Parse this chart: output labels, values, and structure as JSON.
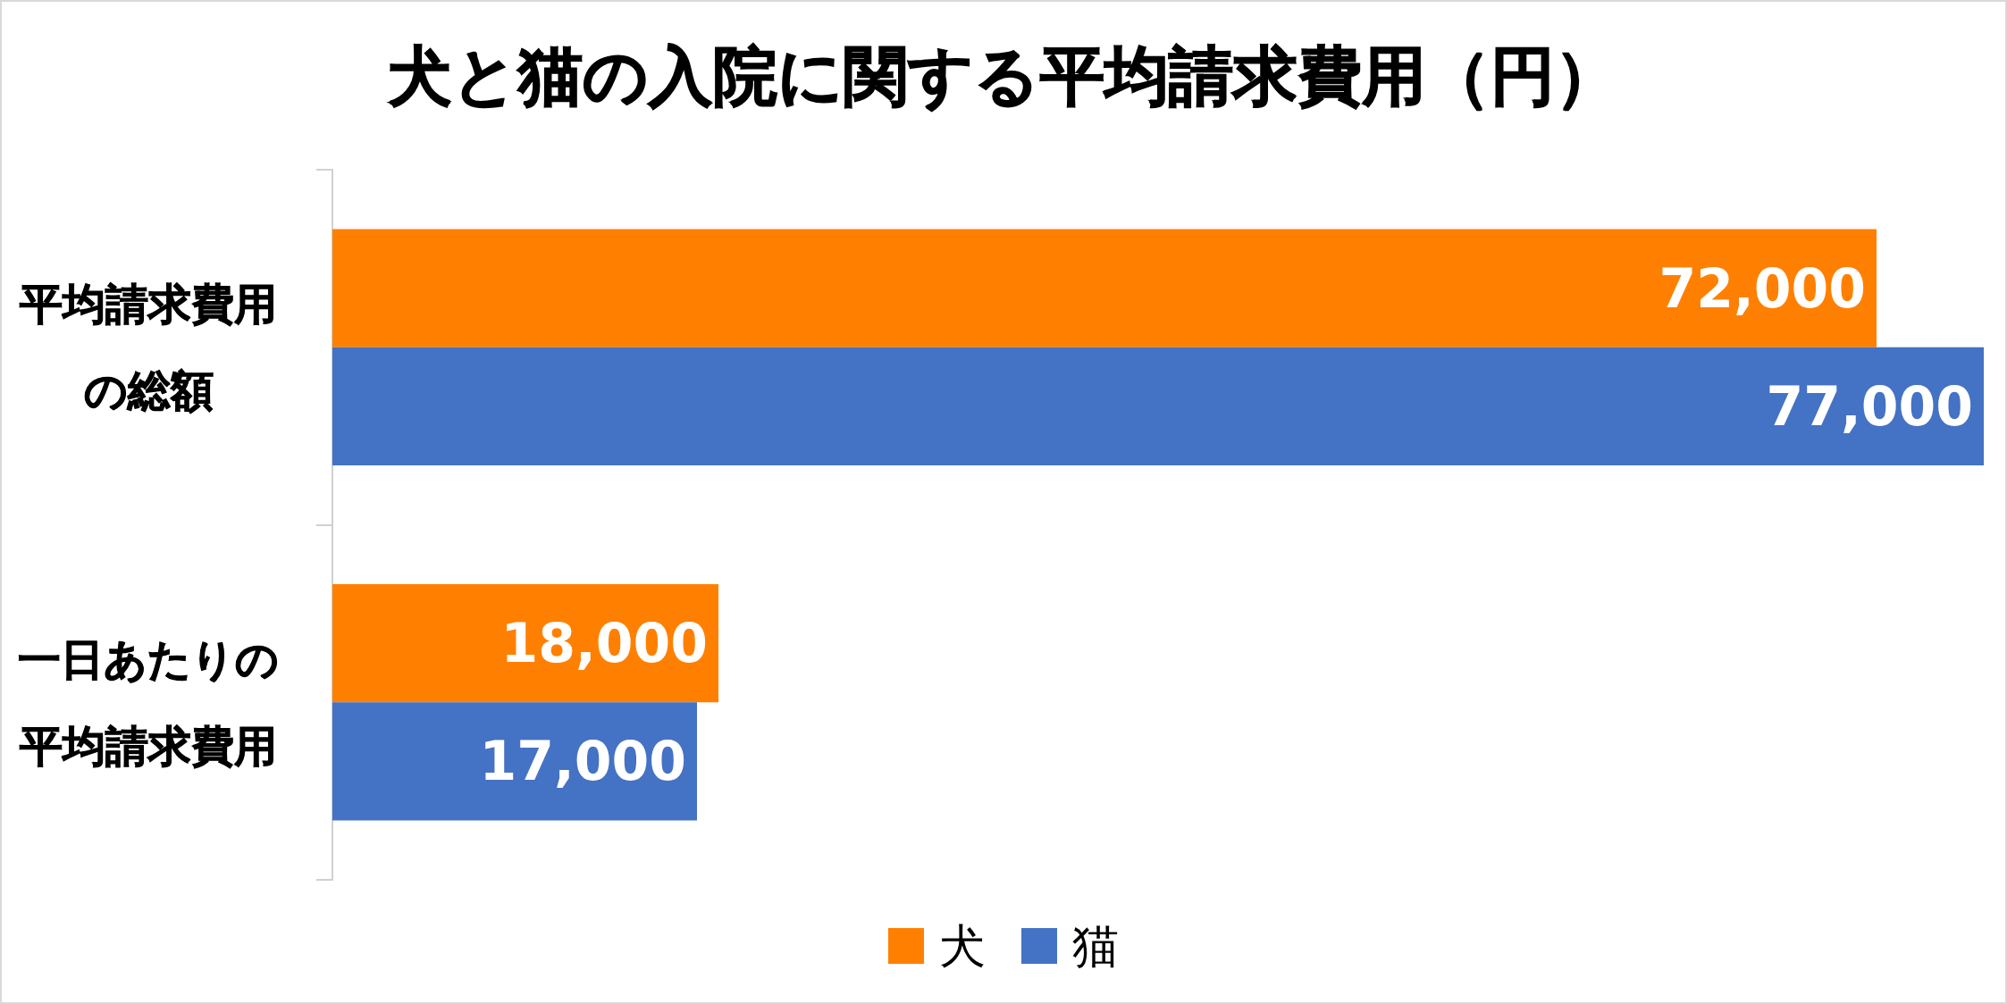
{
  "chart_data": {
    "type": "bar",
    "orientation": "horizontal",
    "title": "犬と猫の入院に関する平均請求費用（円）",
    "categories": [
      "平均請求費用の総額",
      "一日あたりの平均請求費用"
    ],
    "series": [
      {
        "name": "犬",
        "color": "#ff8000",
        "values": [
          72000,
          18000
        ],
        "value_labels": [
          "72,000",
          "18,000"
        ]
      },
      {
        "name": "猫",
        "color": "#4472c4",
        "values": [
          77000,
          17000
        ],
        "value_labels": [
          "77,000",
          "17,000"
        ]
      }
    ],
    "legend": "bottom",
    "tick_labels": "y"
  }
}
